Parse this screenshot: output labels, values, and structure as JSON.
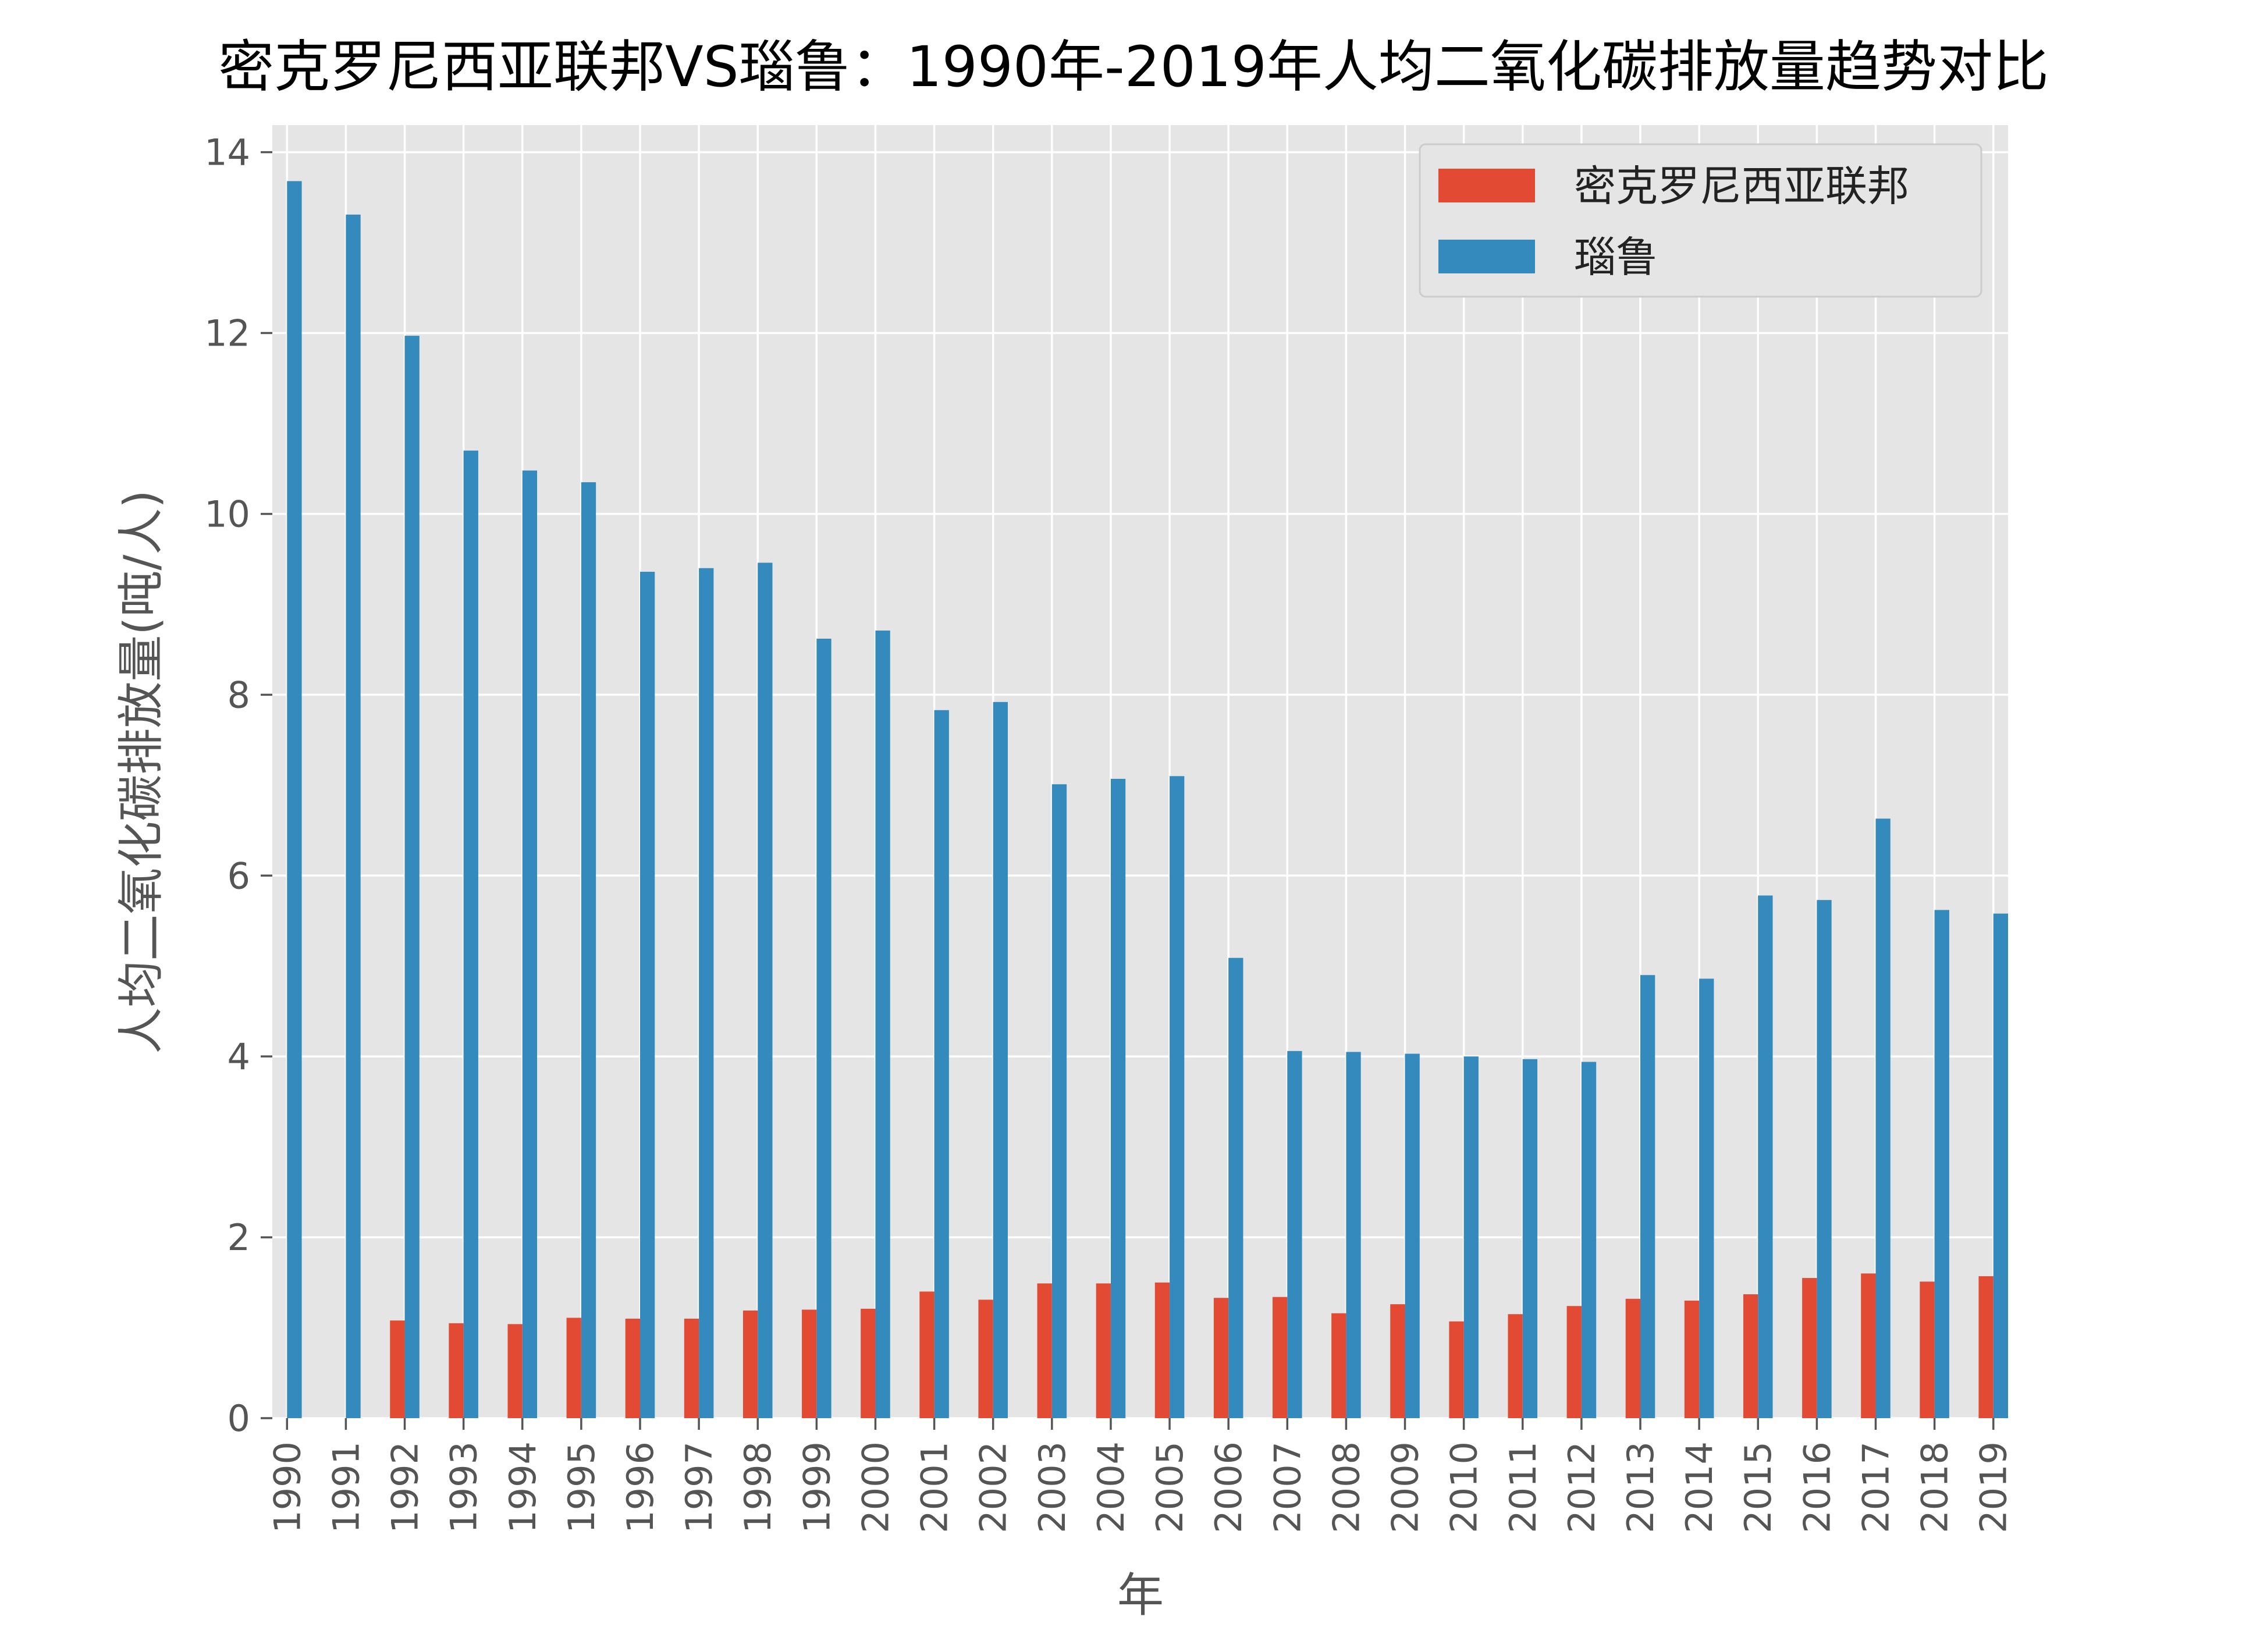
{
  "chart_data": {
    "type": "bar",
    "title": "密克罗尼西亚联邦VS瑙鲁：1990年-2019年人均二氧化碳排放量趋势对比",
    "xlabel": "年",
    "ylabel": "人均二氧化碳排放量(吨/人)",
    "ylim": [
      0,
      14.3
    ],
    "yticks": [
      0,
      2,
      4,
      6,
      8,
      10,
      12,
      14
    ],
    "grid": true,
    "legend_position": "top-right",
    "categories": [
      "1990",
      "1991",
      "1992",
      "1993",
      "1994",
      "1995",
      "1996",
      "1997",
      "1998",
      "1999",
      "2000",
      "2001",
      "2002",
      "2003",
      "2004",
      "2005",
      "2006",
      "2007",
      "2008",
      "2009",
      "2010",
      "2011",
      "2012",
      "2013",
      "2014",
      "2015",
      "2016",
      "2017",
      "2018",
      "2019"
    ],
    "series": [
      {
        "name": "密克罗尼西亚联邦",
        "color": "#E24A33",
        "values": [
          null,
          null,
          1.08,
          1.05,
          1.04,
          1.11,
          1.1,
          1.1,
          1.19,
          1.2,
          1.21,
          1.4,
          1.31,
          1.49,
          1.49,
          1.5,
          1.33,
          1.34,
          1.16,
          1.26,
          1.07,
          1.15,
          1.24,
          1.32,
          1.3,
          1.37,
          1.55,
          1.6,
          1.51,
          1.57
        ]
      },
      {
        "name": "瑙鲁",
        "color": "#348ABD",
        "values": [
          13.68,
          13.31,
          11.97,
          10.7,
          10.48,
          10.35,
          9.36,
          9.4,
          9.46,
          8.62,
          8.71,
          7.83,
          7.92,
          7.01,
          7.07,
          7.1,
          5.09,
          4.06,
          4.05,
          4.03,
          4.0,
          3.97,
          3.94,
          4.9,
          4.86,
          5.78,
          5.73,
          6.63,
          5.62,
          5.58
        ]
      }
    ]
  }
}
